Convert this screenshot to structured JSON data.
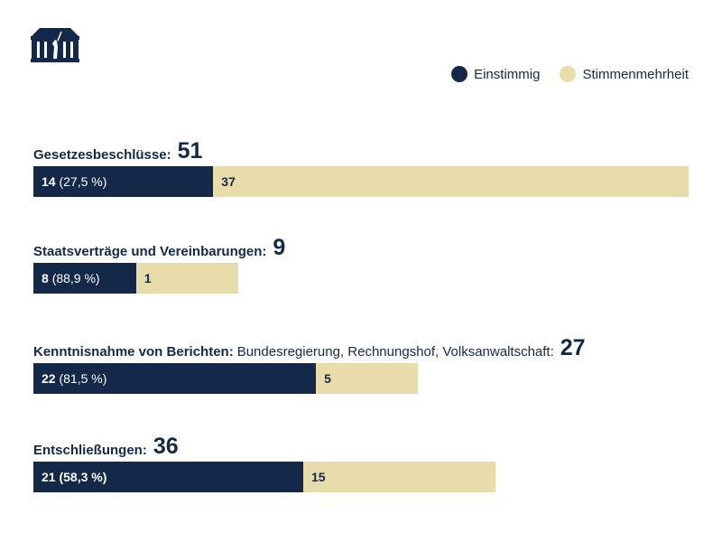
{
  "colors": {
    "unanimous": "#14294a",
    "majority": "#e8dcaa"
  },
  "legend": [
    {
      "label": "Einstimmig",
      "color": "#14294a"
    },
    {
      "label": "Stimmenmehrheit",
      "color": "#e8dcaa"
    }
  ],
  "chart_data": {
    "type": "bar",
    "stacked": true,
    "orientation": "horizontal",
    "series": [
      {
        "name": "Einstimmig"
      },
      {
        "name": "Stimmenmehrheit"
      }
    ],
    "rows": [
      {
        "label": "Gesetzesbeschlüsse:",
        "sub": "",
        "total": "51",
        "unanimous": 14,
        "majority": 37,
        "unanimous_label": "14",
        "pct_label": "(27,5 %)",
        "majority_label": "37",
        "all_bold": false
      },
      {
        "label": "Staatsverträge und Vereinbarungen:",
        "sub": "",
        "total": "9",
        "unanimous": 8,
        "majority": 1,
        "unanimous_label": "8",
        "pct_label": "(88,9 %)",
        "majority_label": "1",
        "all_bold": false
      },
      {
        "label": "Kenntnisnahme von Berichten:",
        "sub": "Bundesregierung, Rechnungshof, Volksanwaltschaft:",
        "total": "27",
        "unanimous": 22,
        "majority": 5,
        "unanimous_label": "22",
        "pct_label": "(81,5 %)",
        "majority_label": "5",
        "all_bold": false
      },
      {
        "label": "Entschließungen:",
        "sub": "",
        "total": "36",
        "unanimous": 21,
        "majority": 15,
        "unanimous_label": "21",
        "pct_label": "(58,3 %)",
        "majority_label": "15",
        "all_bold": true
      }
    ]
  }
}
